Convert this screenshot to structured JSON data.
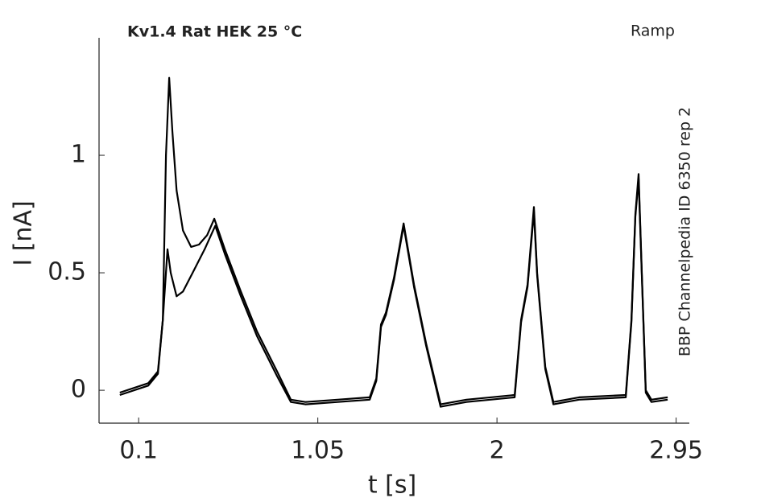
{
  "chart_data": {
    "type": "line",
    "title": "Kv1.4  Rat  HEK  25 °C",
    "annotations": [
      "Ramp",
      "BBP Channelpedia ID 6350 rep 2"
    ],
    "xlabel": "t [s]",
    "ylabel": "I [nA]",
    "xlim": [
      -0.11,
      3.02
    ],
    "ylim": [
      -0.14,
      1.5
    ],
    "xticks": [
      0.1,
      1.05,
      2,
      2.95
    ],
    "yticks": [
      0,
      0.5,
      1
    ],
    "series": [
      {
        "color": "#000000",
        "x": [
          0.0,
          0.151,
          0.202,
          0.228,
          0.245,
          0.262,
          0.279,
          0.301,
          0.335,
          0.378,
          0.42,
          0.463,
          0.501,
          0.557,
          0.642,
          0.728,
          0.834,
          0.907,
          0.984,
          1.155,
          1.325,
          1.36,
          1.385,
          1.411,
          1.454,
          1.505,
          1.56,
          1.624,
          1.701,
          1.838,
          2.094,
          2.128,
          2.162,
          2.196,
          2.213,
          2.256,
          2.299,
          2.435,
          2.683,
          2.713,
          2.734,
          2.751,
          2.768,
          2.789,
          2.819,
          2.905
        ],
        "values": [
          -0.01,
          0.03,
          0.08,
          0.3,
          1.0,
          1.33,
          1.1,
          0.85,
          0.68,
          0.61,
          0.62,
          0.66,
          0.73,
          0.6,
          0.42,
          0.25,
          0.08,
          -0.04,
          -0.05,
          -0.04,
          -0.03,
          0.05,
          0.28,
          0.33,
          0.48,
          0.71,
          0.45,
          0.2,
          -0.06,
          -0.04,
          -0.02,
          0.3,
          0.45,
          0.78,
          0.5,
          0.1,
          -0.05,
          -0.03,
          -0.02,
          0.3,
          0.75,
          0.92,
          0.5,
          0.0,
          -0.04,
          -0.03
        ]
      },
      {
        "color": "#000000",
        "x": [
          0.0,
          0.151,
          0.202,
          0.228,
          0.253,
          0.27,
          0.301,
          0.335,
          0.386,
          0.45,
          0.506,
          0.557,
          0.642,
          0.728,
          0.834,
          0.907,
          0.984,
          1.155,
          1.325,
          1.36,
          1.385,
          1.411,
          1.454,
          1.505,
          1.56,
          1.624,
          1.701,
          1.838,
          2.094,
          2.128,
          2.162,
          2.196,
          2.213,
          2.256,
          2.299,
          2.435,
          2.683,
          2.713,
          2.734,
          2.751,
          2.768,
          2.789,
          2.819,
          2.905
        ],
        "values": [
          -0.02,
          0.02,
          0.07,
          0.3,
          0.6,
          0.5,
          0.4,
          0.42,
          0.5,
          0.6,
          0.7,
          0.58,
          0.4,
          0.23,
          0.06,
          -0.05,
          -0.06,
          -0.05,
          -0.04,
          0.04,
          0.27,
          0.32,
          0.47,
          0.7,
          0.44,
          0.19,
          -0.07,
          -0.05,
          -0.03,
          0.29,
          0.44,
          0.76,
          0.49,
          0.09,
          -0.06,
          -0.04,
          -0.03,
          0.29,
          0.74,
          0.9,
          0.49,
          -0.01,
          -0.05,
          -0.04
        ]
      }
    ]
  }
}
